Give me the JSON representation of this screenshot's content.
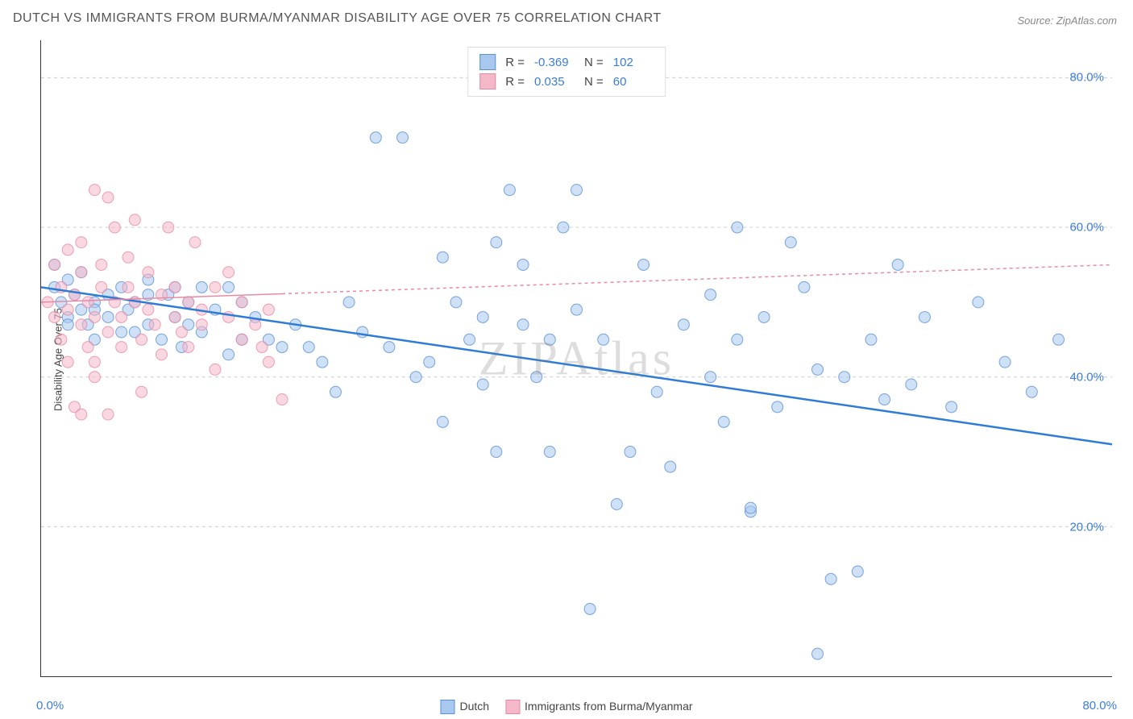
{
  "title": "DUTCH VS IMMIGRANTS FROM BURMA/MYANMAR DISABILITY AGE OVER 75 CORRELATION CHART",
  "source": "Source: ZipAtlas.com",
  "watermark": "ZIPAtlas",
  "ylabel": "Disability Age Over 75",
  "chart": {
    "type": "scatter",
    "xlim": [
      0,
      80
    ],
    "ylim": [
      0,
      85
    ],
    "y_gridlines": [
      20,
      40,
      60,
      80
    ],
    "y_tick_labels": [
      "20.0%",
      "40.0%",
      "60.0%",
      "80.0%"
    ],
    "x_ticks": [
      0,
      10,
      20,
      30,
      40,
      50,
      60,
      70,
      80
    ],
    "x_origin_label": "0.0%",
    "x_max_label": "80.0%",
    "grid_color": "#cccccc",
    "background": "#ffffff",
    "point_radius": 7,
    "point_opacity": 0.55,
    "series": [
      {
        "name": "Dutch",
        "fill": "#a8c8f0",
        "stroke": "#5b8fd6",
        "regression": {
          "x1": 0,
          "y1": 52,
          "x2": 80,
          "y2": 31,
          "color": "#2e7cd6",
          "width": 2.5,
          "dash": "none"
        },
        "stats": {
          "R": "-0.369",
          "N": "102"
        },
        "points": [
          [
            1,
            52
          ],
          [
            1.5,
            50
          ],
          [
            2,
            48
          ],
          [
            2,
            53
          ],
          [
            2.5,
            51
          ],
          [
            3,
            49
          ],
          [
            3,
            54
          ],
          [
            3.5,
            47
          ],
          [
            4,
            50
          ],
          [
            4,
            45
          ],
          [
            5,
            51
          ],
          [
            5,
            48
          ],
          [
            6,
            52
          ],
          [
            6.5,
            49
          ],
          [
            7,
            46
          ],
          [
            7,
            50
          ],
          [
            8,
            53
          ],
          [
            8,
            47
          ],
          [
            9,
            45
          ],
          [
            9.5,
            51
          ],
          [
            10,
            52
          ],
          [
            10,
            48
          ],
          [
            10.5,
            44
          ],
          [
            11,
            50
          ],
          [
            12,
            52
          ],
          [
            12,
            46
          ],
          [
            13,
            49
          ],
          [
            14,
            52
          ],
          [
            14,
            43
          ],
          [
            15,
            50
          ],
          [
            16,
            48
          ],
          [
            17,
            45
          ],
          [
            18,
            44
          ],
          [
            19,
            47
          ],
          [
            20,
            44
          ],
          [
            21,
            42
          ],
          [
            22,
            38
          ],
          [
            23,
            50
          ],
          [
            24,
            46
          ],
          [
            25,
            72
          ],
          [
            26,
            44
          ],
          [
            27,
            72
          ],
          [
            28,
            40
          ],
          [
            29,
            42
          ],
          [
            30,
            56
          ],
          [
            30,
            34
          ],
          [
            31,
            50
          ],
          [
            32,
            45
          ],
          [
            33,
            39
          ],
          [
            33,
            48
          ],
          [
            34,
            30
          ],
          [
            34,
            58
          ],
          [
            35,
            65
          ],
          [
            36,
            47
          ],
          [
            36,
            55
          ],
          [
            37,
            40
          ],
          [
            38,
            45
          ],
          [
            38,
            30
          ],
          [
            39,
            60
          ],
          [
            40,
            49
          ],
          [
            40,
            65
          ],
          [
            41,
            9
          ],
          [
            42,
            45
          ],
          [
            43,
            23
          ],
          [
            44,
            30
          ],
          [
            45,
            55
          ],
          [
            46,
            38
          ],
          [
            47,
            28
          ],
          [
            48,
            47
          ],
          [
            50,
            51
          ],
          [
            50,
            40
          ],
          [
            51,
            34
          ],
          [
            52,
            45
          ],
          [
            52,
            60
          ],
          [
            53,
            22
          ],
          [
            53,
            22.5
          ],
          [
            54,
            48
          ],
          [
            55,
            36
          ],
          [
            56,
            58
          ],
          [
            57,
            52
          ],
          [
            58,
            41
          ],
          [
            58,
            3
          ],
          [
            59,
            13
          ],
          [
            60,
            40
          ],
          [
            61,
            14
          ],
          [
            62,
            45
          ],
          [
            63,
            37
          ],
          [
            64,
            55
          ],
          [
            65,
            39
          ],
          [
            66,
            48
          ],
          [
            68,
            36
          ],
          [
            70,
            50
          ],
          [
            72,
            42
          ],
          [
            74,
            38
          ],
          [
            76,
            45
          ],
          [
            1,
            55
          ],
          [
            2,
            47
          ],
          [
            4,
            49
          ],
          [
            6,
            46
          ],
          [
            8,
            51
          ],
          [
            11,
            47
          ],
          [
            15,
            45
          ]
        ]
      },
      {
        "name": "Immigrants from Burma/Myanmar",
        "fill": "#f5b8c8",
        "stroke": "#e88aa5",
        "regression": {
          "x1": 0,
          "y1": 50,
          "x2": 80,
          "y2": 55,
          "color": "#e88aa5",
          "width": 1.5,
          "dash": "4,4",
          "solid_until": 18
        },
        "stats": {
          "R": "0.035",
          "N": "60"
        },
        "points": [
          [
            0.5,
            50
          ],
          [
            1,
            48
          ],
          [
            1,
            55
          ],
          [
            1.5,
            52
          ],
          [
            1.5,
            45
          ],
          [
            2,
            57
          ],
          [
            2,
            49
          ],
          [
            2,
            42
          ],
          [
            2.5,
            51
          ],
          [
            2.5,
            36
          ],
          [
            3,
            54
          ],
          [
            3,
            35
          ],
          [
            3,
            47
          ],
          [
            3.5,
            50
          ],
          [
            3.5,
            44
          ],
          [
            4,
            65
          ],
          [
            4,
            48
          ],
          [
            4,
            40
          ],
          [
            4.5,
            55
          ],
          [
            4.5,
            52
          ],
          [
            5,
            64
          ],
          [
            5,
            46
          ],
          [
            5,
            35
          ],
          [
            5.5,
            50
          ],
          [
            5.5,
            60
          ],
          [
            6,
            48
          ],
          [
            6,
            44
          ],
          [
            6.5,
            52
          ],
          [
            6.5,
            56
          ],
          [
            7,
            50
          ],
          [
            7,
            61
          ],
          [
            7.5,
            45
          ],
          [
            7.5,
            38
          ],
          [
            8,
            49
          ],
          [
            8,
            54
          ],
          [
            8.5,
            47
          ],
          [
            9,
            51
          ],
          [
            9,
            43
          ],
          [
            9.5,
            60
          ],
          [
            10,
            48
          ],
          [
            10,
            52
          ],
          [
            10.5,
            46
          ],
          [
            11,
            44
          ],
          [
            11,
            50
          ],
          [
            11.5,
            58
          ],
          [
            12,
            47
          ],
          [
            12,
            49
          ],
          [
            13,
            52
          ],
          [
            13,
            41
          ],
          [
            14,
            48
          ],
          [
            14,
            54
          ],
          [
            15,
            45
          ],
          [
            15,
            50
          ],
          [
            16,
            47
          ],
          [
            16.5,
            44
          ],
          [
            17,
            49
          ],
          [
            17,
            42
          ],
          [
            18,
            37
          ],
          [
            3,
            58
          ],
          [
            4,
            42
          ]
        ]
      }
    ]
  },
  "bottom_legend": [
    {
      "label": "Dutch",
      "fill": "#a8c8f0",
      "stroke": "#5b8fd6"
    },
    {
      "label": "Immigrants from Burma/Myanmar",
      "fill": "#f5b8c8",
      "stroke": "#e88aa5"
    }
  ]
}
